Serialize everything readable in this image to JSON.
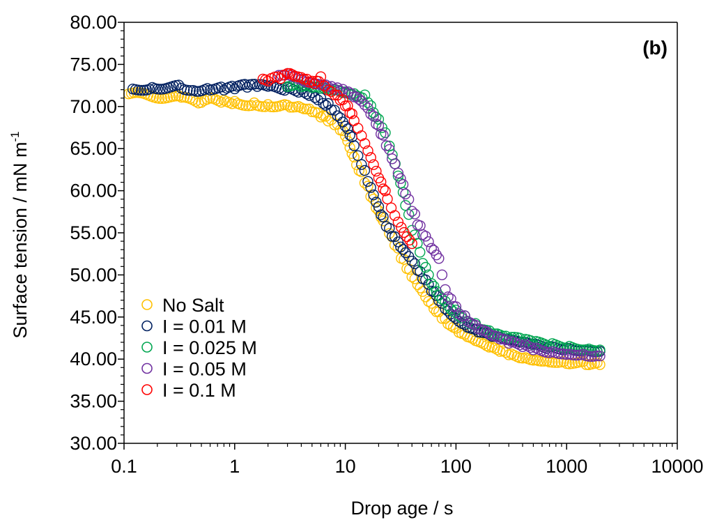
{
  "chart_data": {
    "type": "scatter",
    "panel_label": "(b)",
    "xlabel": "Drop age / s",
    "ylabel_main": "Surface tension / mN m",
    "ylabel_sup": "-1",
    "x_scale": "log",
    "xlim": [
      0.1,
      10000
    ],
    "ylim": [
      30,
      80
    ],
    "x_tick_labels": [
      "0.1",
      "1",
      "10",
      "100",
      "1000",
      "10000"
    ],
    "y_tick_labels": [
      "30.00",
      "35.00",
      "40.00",
      "45.00",
      "50.00",
      "55.00",
      "60.00",
      "65.00",
      "70.00",
      "75.00",
      "80.00"
    ],
    "grid": false,
    "legend_position": "bottom-left",
    "series": [
      {
        "name": "No Salt",
        "color": "#FFC000",
        "x": [
          0.11,
          0.33,
          0.5,
          0.6,
          0.8,
          1.0,
          1.5,
          2,
          3,
          4,
          5,
          6,
          7,
          8,
          9,
          10,
          11,
          12,
          14,
          16,
          18,
          20,
          22,
          25,
          28,
          32,
          36,
          40,
          45,
          50,
          60,
          70,
          80,
          100,
          120,
          150,
          200,
          250,
          300,
          400,
          500,
          700,
          1000,
          1500,
          2000
        ],
        "y": [
          71.5,
          71.0,
          70.3,
          70.8,
          70.5,
          70.4,
          70.3,
          70.2,
          70.2,
          70.0,
          69.6,
          69.0,
          68.5,
          68.0,
          67.3,
          66.5,
          65.0,
          63.8,
          62.0,
          60.3,
          58.8,
          57.5,
          56.4,
          55.0,
          53.7,
          52.2,
          51.0,
          50.0,
          49.0,
          48.1,
          46.6,
          45.5,
          44.6,
          43.4,
          42.7,
          42.0,
          41.3,
          40.9,
          40.6,
          40.3,
          40.1,
          39.9,
          39.7,
          39.5,
          39.4
        ]
      },
      {
        "name": "I = 0.01 M",
        "color": "#002060",
        "x": [
          0.12,
          0.18,
          0.33,
          0.45,
          0.6,
          0.8,
          1.0,
          1.3,
          1.6,
          2,
          3,
          4,
          5,
          6,
          7,
          8,
          9,
          10,
          11,
          12,
          13,
          14,
          16,
          18,
          20,
          22,
          25,
          28,
          30,
          35,
          40,
          45,
          50,
          60,
          70,
          80,
          100,
          120,
          150,
          200,
          250,
          300,
          400,
          500,
          700,
          1000,
          1500,
          2000
        ],
        "y": [
          72.0,
          72.3,
          72.3,
          72.0,
          72.2,
          72.2,
          72.3,
          72.4,
          72.4,
          72.3,
          72.1,
          71.8,
          71.4,
          70.8,
          70.2,
          69.5,
          68.7,
          67.8,
          66.8,
          65.6,
          64.4,
          63.3,
          61.2,
          59.5,
          58.0,
          56.7,
          55.3,
          54.3,
          53.7,
          52.5,
          51.6,
          50.6,
          49.7,
          48.3,
          47.2,
          46.2,
          45.0,
          44.2,
          43.5,
          42.8,
          42.4,
          42.1,
          41.8,
          41.6,
          41.4,
          41.3,
          41.2,
          41.1
        ]
      },
      {
        "name": "I = 0.025 M",
        "color": "#00A651",
        "x": [
          3,
          4,
          5,
          6,
          8,
          10,
          12,
          15,
          17,
          20,
          23,
          25,
          30,
          35,
          40,
          50,
          60,
          70,
          80,
          100,
          120,
          150,
          200,
          250,
          300,
          400,
          500,
          700,
          1000,
          1500,
          2000
        ],
        "y": [
          72.5,
          72.4,
          72.2,
          72.0,
          71.8,
          71.5,
          71.3,
          71.2,
          70.0,
          68.5,
          67.0,
          65.5,
          62.0,
          58.5,
          55.5,
          51.5,
          49.0,
          47.5,
          46.7,
          45.6,
          44.9,
          44.0,
          43.2,
          42.8,
          42.5,
          42.2,
          41.9,
          41.7,
          41.5,
          41.3,
          41.2
        ]
      },
      {
        "name": "I = 0.05 M",
        "color": "#7030A0",
        "x": [
          2.5,
          3,
          3.5,
          4,
          5,
          6,
          7,
          8,
          9,
          10,
          12,
          14,
          16,
          18,
          20,
          22,
          25,
          28,
          30,
          35,
          40,
          45,
          50,
          60,
          70,
          80,
          90,
          100,
          120,
          150,
          200,
          250,
          300,
          400,
          500,
          700,
          1000,
          1500,
          2000
        ],
        "y": [
          73.5,
          73.8,
          73.6,
          73.3,
          73.0,
          72.8,
          72.6,
          72.3,
          72.0,
          71.7,
          71.1,
          70.5,
          69.6,
          68.6,
          67.5,
          66.4,
          64.8,
          63.2,
          62.2,
          59.8,
          57.8,
          56.2,
          55.0,
          53.3,
          52.0,
          48.2,
          47.0,
          46.0,
          44.9,
          43.8,
          42.8,
          42.3,
          41.9,
          41.6,
          41.3,
          41.0,
          40.8,
          40.6,
          40.5
        ]
      },
      {
        "name": "I = 0.1 M",
        "color": "#FF0000",
        "x": [
          1.8,
          2,
          2.3,
          2.6,
          3,
          3.5,
          4,
          4.5,
          5,
          5.5,
          6,
          6.5,
          7,
          8,
          9,
          10,
          11,
          12,
          13,
          14,
          15,
          16,
          17,
          18,
          19,
          20,
          22,
          24,
          26,
          28,
          30,
          32,
          34,
          36,
          38,
          40
        ],
        "y": [
          73.5,
          73.2,
          73.6,
          73.3,
          73.8,
          73.4,
          73.2,
          73.0,
          72.8,
          72.9,
          73.5,
          72.5,
          72.1,
          71.6,
          71.0,
          70.3,
          69.4,
          68.4,
          67.4,
          66.4,
          65.4,
          64.5,
          63.7,
          62.9,
          62.2,
          61.5,
          60.3,
          59.2,
          58.2,
          57.3,
          56.5,
          55.8,
          55.1,
          54.5,
          54.0,
          53.5
        ]
      }
    ]
  }
}
